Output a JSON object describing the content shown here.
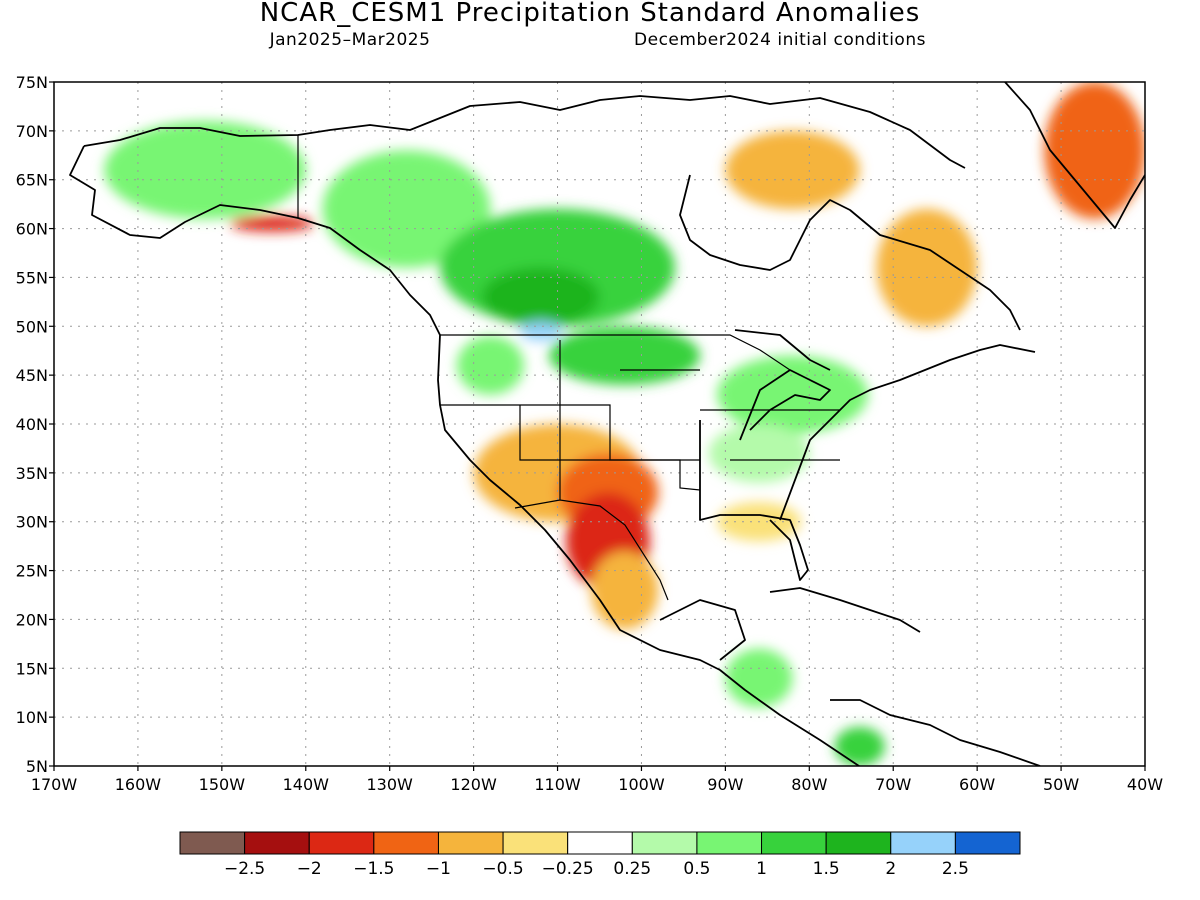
{
  "title": "NCAR_CESM1 Precipitation Standard Anomalies",
  "period": "Jan2025–Mar2025",
  "init": "December2024 initial conditions",
  "lat_ticks": [
    "5N",
    "10N",
    "15N",
    "20N",
    "25N",
    "30N",
    "35N",
    "40N",
    "45N",
    "50N",
    "55N",
    "60N",
    "65N",
    "70N",
    "75N"
  ],
  "lon_ticks": [
    "170W",
    "160W",
    "150W",
    "140W",
    "130W",
    "120W",
    "110W",
    "100W",
    "90W",
    "80W",
    "70W",
    "60W",
    "50W",
    "40W"
  ],
  "colorbar": {
    "colors": [
      "#7f5a50",
      "#a50f0f",
      "#dc2814",
      "#f06414",
      "#f5b43c",
      "#fae179",
      "#ffffff",
      "#b4faaa",
      "#78f573",
      "#37d23c",
      "#1eb41e",
      "#96d2fa",
      "#1464d2"
    ],
    "labels": [
      "−2.5",
      "−2",
      "−1.5",
      "−1",
      "−0.5",
      "−0.25",
      "0.25",
      "0.5",
      "1",
      "1.5",
      "2",
      "2.5"
    ]
  },
  "anomaly_regions": [
    {
      "name": "alaska-wet",
      "color": "#78f573",
      "lon": -152,
      "lat": 66,
      "rx": 12,
      "ry": 5
    },
    {
      "name": "yukon-wet",
      "color": "#78f573",
      "lon": -128,
      "lat": 62,
      "rx": 10,
      "ry": 6
    },
    {
      "name": "canada-prairies-wet",
      "color": "#37d23c",
      "lon": -110,
      "lat": 56,
      "rx": 14,
      "ry": 6
    },
    {
      "name": "prairie-core-wet",
      "color": "#1eb41e",
      "lon": -112,
      "lat": 53,
      "rx": 7,
      "ry": 3
    },
    {
      "name": "lake-wet-blue",
      "color": "#96d2fa",
      "lon": -112,
      "lat": 49.5,
      "rx": 2.5,
      "ry": 1
    },
    {
      "name": "northern-plains-wet",
      "color": "#37d23c",
      "lon": -102,
      "lat": 47,
      "rx": 9,
      "ry": 3
    },
    {
      "name": "pacific-nw-wet",
      "color": "#78f573",
      "lon": -118,
      "lat": 46,
      "rx": 4,
      "ry": 3
    },
    {
      "name": "great-lakes-wet",
      "color": "#78f573",
      "lon": -82,
      "lat": 43,
      "rx": 9,
      "ry": 4
    },
    {
      "name": "ohio-valley-wet",
      "color": "#b4faaa",
      "lon": -86,
      "lat": 37,
      "rx": 6,
      "ry": 3
    },
    {
      "name": "quebec-dry",
      "color": "#f5b43c",
      "lon": -66,
      "lat": 56,
      "rx": 6,
      "ry": 6
    },
    {
      "name": "baffin-dry",
      "color": "#f5b43c",
      "lon": -82,
      "lat": 66,
      "rx": 8,
      "ry": 4
    },
    {
      "name": "southwest-dry",
      "color": "#f5b43c",
      "lon": -110,
      "lat": 35,
      "rx": 10,
      "ry": 5
    },
    {
      "name": "southern-plains-dry",
      "color": "#f06414",
      "lon": -104,
      "lat": 33,
      "rx": 6,
      "ry": 4
    },
    {
      "name": "texas-very-dry",
      "color": "#dc2814",
      "lon": -104,
      "lat": 28,
      "rx": 5,
      "ry": 5
    },
    {
      "name": "mexico-dry",
      "color": "#f5b43c",
      "lon": -102,
      "lat": 23,
      "rx": 4,
      "ry": 4
    },
    {
      "name": "southeast-dry",
      "color": "#fae179",
      "lon": -86,
      "lat": 30,
      "rx": 5,
      "ry": 2
    },
    {
      "name": "alaska-coast-dry",
      "color": "#dc2814",
      "lon": -144,
      "lat": 60.5,
      "rx": 5,
      "ry": 0.8
    },
    {
      "name": "greenland-dry",
      "color": "#f06414",
      "lon": -46,
      "lat": 68,
      "rx": 6,
      "ry": 7
    },
    {
      "name": "central-america-wet",
      "color": "#78f573",
      "lon": -86,
      "lat": 14,
      "rx": 4,
      "ry": 3
    },
    {
      "name": "colombia-wet",
      "color": "#37d23c",
      "lon": -74,
      "lat": 7,
      "rx": 3,
      "ry": 2
    }
  ]
}
